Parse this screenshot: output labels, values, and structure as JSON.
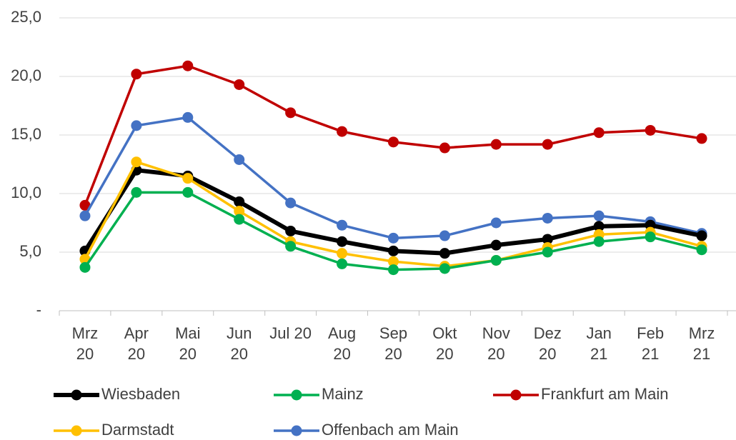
{
  "chart_data": {
    "type": "line",
    "categories": [
      "Mrz\n20",
      "Apr\n20",
      "Mai\n20",
      "Jun\n20",
      "Jul 20",
      "Aug\n20",
      "Sep\n20",
      "Okt\n20",
      "Nov\n20",
      "Dez\n20",
      "Jan\n21",
      "Feb\n21",
      "Mrz\n21"
    ],
    "series": [
      {
        "name": "Wiesbaden",
        "color": "#000000",
        "values": [
          5.1,
          12.0,
          11.5,
          9.3,
          6.8,
          5.9,
          5.1,
          4.9,
          5.6,
          6.1,
          7.2,
          7.3,
          6.4
        ]
      },
      {
        "name": "Mainz",
        "color": "#00b050",
        "values": [
          3.7,
          10.1,
          10.1,
          7.8,
          5.5,
          4.0,
          3.5,
          3.6,
          4.3,
          5.0,
          5.9,
          6.3,
          5.2
        ]
      },
      {
        "name": "Frankfurt am Main",
        "color": "#c00000",
        "values": [
          9.0,
          20.2,
          20.9,
          19.3,
          16.9,
          15.3,
          14.4,
          13.9,
          14.2,
          14.2,
          15.2,
          15.4,
          14.7
        ]
      },
      {
        "name": "Darmstadt",
        "color": "#ffc000",
        "values": [
          4.4,
          12.7,
          11.3,
          8.5,
          5.9,
          4.9,
          4.2,
          3.8,
          4.3,
          5.4,
          6.5,
          6.7,
          5.5
        ]
      },
      {
        "name": "Offenbach am Main",
        "color": "#4472c4",
        "values": [
          8.1,
          15.8,
          16.5,
          12.9,
          9.2,
          7.3,
          6.2,
          6.4,
          7.5,
          7.9,
          8.1,
          7.6,
          6.6
        ]
      }
    ],
    "ylim": [
      0,
      25
    ],
    "yticks": [
      {
        "value": 0,
        "label": "-"
      },
      {
        "value": 5,
        "label": "5,0"
      },
      {
        "value": 10,
        "label": "10,0"
      },
      {
        "value": 15,
        "label": "15,0"
      },
      {
        "value": 20,
        "label": "20,0"
      },
      {
        "value": 25,
        "label": "25,0"
      }
    ],
    "grid": true,
    "legend": "bottom"
  }
}
